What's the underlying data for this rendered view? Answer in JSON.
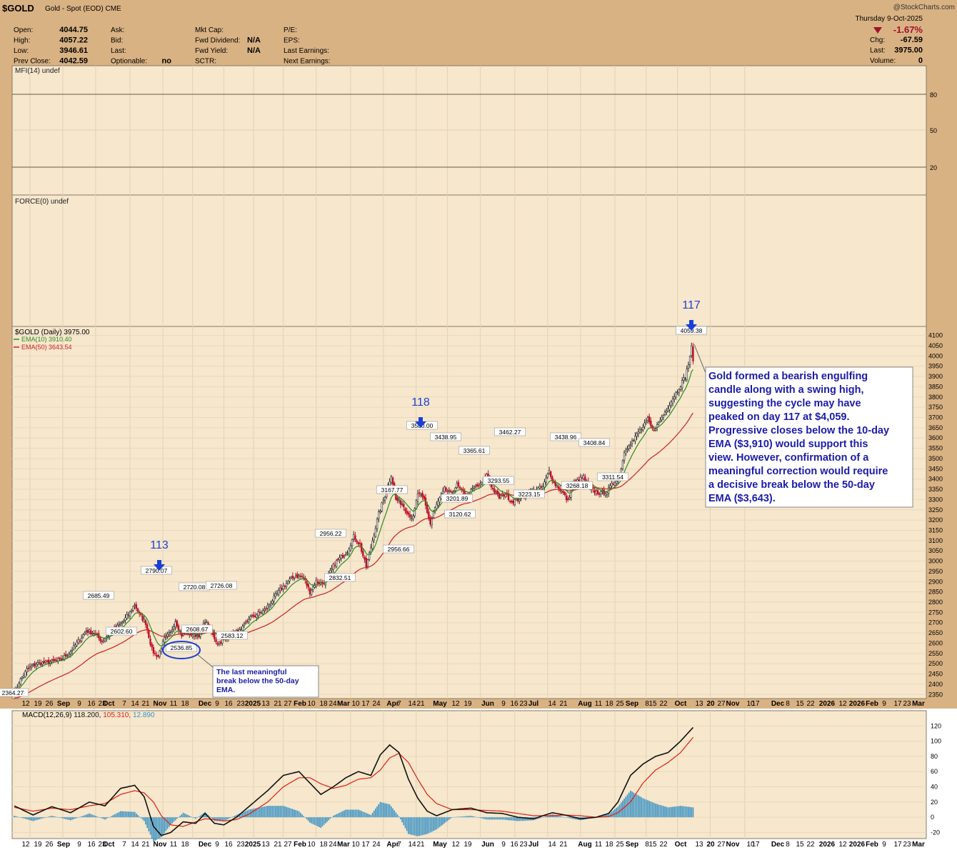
{
  "header": {
    "ticker": "$GOLD",
    "name": "Gold - Spot (EOD)",
    "exchange": "CME",
    "brand": "@StockCharts.com",
    "date": "Thursday  9-Oct-2025",
    "change_pct": "-1.67%",
    "quote_left": [
      {
        "label": "Open:",
        "value": "4044.75"
      },
      {
        "label": "High:",
        "value": "4057.22"
      },
      {
        "label": "Low:",
        "value": "3946.61"
      },
      {
        "label": "Prev Close:",
        "value": "4042.59"
      }
    ],
    "quote_mid1": [
      {
        "label": "Ask:",
        "value": ""
      },
      {
        "label": "Bid:",
        "value": ""
      },
      {
        "label": "Last:",
        "value": ""
      },
      {
        "label": "Optionable:",
        "value": "no"
      }
    ],
    "quote_mid2": [
      {
        "label": "Mkt Cap:",
        "value": ""
      },
      {
        "label": "Fwd Dividend:",
        "value": "N/A"
      },
      {
        "label": "Fwd Yield:",
        "value": "N/A"
      },
      {
        "label": "SCTR:",
        "value": ""
      }
    ],
    "quote_mid3": [
      {
        "label": "P/E:",
        "value": ""
      },
      {
        "label": "EPS:",
        "value": ""
      },
      {
        "label": "Last Earnings:",
        "value": ""
      },
      {
        "label": "Next Earnings:",
        "value": ""
      }
    ],
    "quote_right": [
      {
        "label": "Chg:",
        "value": "-67.59"
      },
      {
        "label": "Last:",
        "value": "3975.00"
      },
      {
        "label": "Volume:",
        "value": "0"
      }
    ]
  },
  "panels": {
    "mfi_label": "MFI(14) undef",
    "force_label": "FORCE(0) undef",
    "price_label": "$GOLD (Daily) 3975.00",
    "ema10_label": "EMA(10) 3910.40",
    "ema50_label": "EMA(50) 3643.54",
    "macd_label": "MACD(12,26,9)",
    "macd_vals": [
      "118.200",
      "105.310",
      "12.890"
    ]
  },
  "colors": {
    "header_bg": "#d9b283",
    "panel_bg": "#f6e7cd",
    "candle_up": "#2a2a2a",
    "candle_down": "#c0102a",
    "ema10": "#2e8b1f",
    "ema50": "#d02020",
    "macd_line": "#111111",
    "signal_line": "#e02010",
    "histogram": "#3b93c4",
    "annotation_text": "#1c1ca8",
    "arrow": "#1b3fd6"
  },
  "x_axis_labels": [
    "12",
    "19",
    "26",
    "Sep",
    "9",
    "16",
    "23",
    "Oct",
    "7",
    "14",
    "21",
    "Nov",
    "11",
    "18",
    "Dec",
    "9",
    "16",
    "23",
    "2025",
    "13",
    "21",
    "27",
    "Feb",
    "10",
    "18",
    "24",
    "Mar",
    "10",
    "17",
    "24",
    "Apr",
    "7",
    "14",
    "21",
    "May",
    "12",
    "19",
    "Jun",
    "9",
    "16",
    "23",
    "Jul",
    "14",
    "21",
    "Aug",
    "11",
    "18",
    "25",
    "Sep",
    "8",
    "15",
    "22",
    "Oct",
    "13",
    "20",
    "27",
    "Nov",
    "10",
    "17",
    "Dec",
    "8",
    "15",
    "22",
    "2026",
    "12",
    "2026",
    "Feb",
    "9",
    "17",
    "23",
    "Mar"
  ],
  "cycle_labels": [
    {
      "text": "113"
    },
    {
      "text": "118"
    },
    {
      "text": "117"
    }
  ],
  "annotations": {
    "main": "Gold formed a bearish engulfing candle along with a swing high, suggesting the cycle may have peaked on day 117 at $4,059. Progressive closes below the 10-day EMA ($3,910) would support this view. However, confirmation of a meaningful correction would require a decisive break below the 50-day EMA ($3,643).",
    "main_lines": [
      "Gold formed a bearish engulfing",
      "candle along with a swing high,",
      "suggesting the cycle may have",
      "peaked on day 117 at $4,059.",
      "Progressive closes below the 10-day",
      "EMA ($3,910) would support this",
      "view. However, confirmation of a",
      "meaningful correction would require",
      "a decisive break below the 50-day",
      "EMA ($3,643)."
    ],
    "small_lines": [
      "The last meaningful",
      "break below the 50-day",
      "EMA."
    ]
  },
  "chart_data": {
    "type": "candlestick",
    "title": "$GOLD (Daily) 3975.00",
    "price_ylim": [
      2330,
      4130
    ],
    "price_ticks": [
      2350,
      2400,
      2450,
      2500,
      2550,
      2600,
      2650,
      2700,
      2750,
      2800,
      2850,
      2900,
      2950,
      3000,
      3050,
      3100,
      3150,
      3200,
      3250,
      3300,
      3350,
      3400,
      3450,
      3500,
      3550,
      3600,
      3650,
      3700,
      3750,
      3800,
      3850,
      3900,
      3950,
      4000,
      4050,
      4100
    ],
    "close_anchors": [
      [
        0,
        2380
      ],
      [
        1,
        2364
      ],
      [
        3,
        2410
      ],
      [
        8,
        2470
      ],
      [
        14,
        2500
      ],
      [
        20,
        2505
      ],
      [
        25,
        2510
      ],
      [
        30,
        2520
      ],
      [
        36,
        2560
      ],
      [
        41,
        2610
      ],
      [
        46,
        2660
      ],
      [
        51,
        2650
      ],
      [
        56,
        2610
      ],
      [
        60,
        2640
      ],
      [
        66,
        2680
      ],
      [
        70,
        2710
      ],
      [
        74,
        2750
      ],
      [
        77,
        2790
      ],
      [
        80,
        2740
      ],
      [
        84,
        2700
      ],
      [
        88,
        2570
      ],
      [
        90,
        2545
      ],
      [
        92,
        2540
      ],
      [
        96,
        2620
      ],
      [
        100,
        2650
      ],
      [
        103,
        2710
      ],
      [
        107,
        2640
      ],
      [
        111,
        2650
      ],
      [
        115,
        2640
      ],
      [
        119,
        2640
      ],
      [
        122,
        2710
      ],
      [
        126,
        2650
      ],
      [
        130,
        2600
      ],
      [
        135,
        2620
      ],
      [
        140,
        2650
      ],
      [
        145,
        2660
      ],
      [
        150,
        2720
      ],
      [
        155,
        2740
      ],
      [
        160,
        2760
      ],
      [
        165,
        2810
      ],
      [
        170,
        2860
      ],
      [
        175,
        2900
      ],
      [
        180,
        2930
      ],
      [
        185,
        2920
      ],
      [
        189,
        2850
      ],
      [
        193,
        2900
      ],
      [
        197,
        2890
      ],
      [
        201,
        2930
      ],
      [
        205,
        2990
      ],
      [
        209,
        3020
      ],
      [
        213,
        3050
      ],
      [
        217,
        3120
      ],
      [
        221,
        3080
      ],
      [
        225,
        2970
      ],
      [
        229,
        3100
      ],
      [
        233,
        3230
      ],
      [
        237,
        3320
      ],
      [
        241,
        3420
      ],
      [
        244,
        3300
      ],
      [
        248,
        3280
      ],
      [
        252,
        3230
      ],
      [
        255,
        3210
      ],
      [
        258,
        3330
      ],
      [
        262,
        3300
      ],
      [
        266,
        3180
      ],
      [
        268,
        3240
      ],
      [
        271,
        3290
      ],
      [
        275,
        3350
      ],
      [
        279,
        3330
      ],
      [
        283,
        3370
      ],
      [
        286,
        3340
      ],
      [
        290,
        3320
      ],
      [
        294,
        3360
      ],
      [
        298,
        3370
      ],
      [
        302,
        3420
      ],
      [
        306,
        3350
      ],
      [
        310,
        3310
      ],
      [
        314,
        3330
      ],
      [
        318,
        3290
      ],
      [
        322,
        3300
      ],
      [
        325,
        3320
      ],
      [
        330,
        3340
      ],
      [
        334,
        3350
      ],
      [
        338,
        3360
      ],
      [
        342,
        3440
      ],
      [
        345,
        3380
      ],
      [
        348,
        3360
      ],
      [
        351,
        3330
      ],
      [
        354,
        3290
      ],
      [
        357,
        3380
      ],
      [
        360,
        3390
      ],
      [
        364,
        3410
      ],
      [
        368,
        3350
      ],
      [
        371,
        3340
      ],
      [
        375,
        3330
      ],
      [
        379,
        3340
      ],
      [
        383,
        3380
      ],
      [
        387,
        3420
      ],
      [
        390,
        3530
      ],
      [
        393,
        3570
      ],
      [
        396,
        3590
      ],
      [
        399,
        3630
      ],
      [
        402,
        3650
      ],
      [
        405,
        3690
      ],
      [
        408,
        3640
      ],
      [
        411,
        3660
      ],
      [
        414,
        3700
      ],
      [
        417,
        3740
      ],
      [
        420,
        3780
      ],
      [
        423,
        3820
      ],
      [
        426,
        3860
      ],
      [
        429,
        3900
      ],
      [
        431,
        3960
      ],
      [
        433,
        4040
      ],
      [
        434,
        3975
      ]
    ],
    "macd": {
      "name": "MACD(12,26,9)",
      "ylim": [
        -28,
        140
      ],
      "ticks": [
        -20,
        0,
        20,
        40,
        60,
        80,
        100,
        120
      ],
      "macd_anchors": [
        [
          0,
          15
        ],
        [
          12,
          3
        ],
        [
          24,
          14
        ],
        [
          36,
          6
        ],
        [
          48,
          20
        ],
        [
          58,
          15
        ],
        [
          68,
          38
        ],
        [
          77,
          42
        ],
        [
          83,
          27
        ],
        [
          89,
          -12
        ],
        [
          94,
          -24
        ],
        [
          100,
          -20
        ],
        [
          108,
          -6
        ],
        [
          116,
          -8
        ],
        [
          122,
          5
        ],
        [
          128,
          -8
        ],
        [
          134,
          -10
        ],
        [
          142,
          0
        ],
        [
          150,
          14
        ],
        [
          162,
          35
        ],
        [
          172,
          55
        ],
        [
          182,
          60
        ],
        [
          189,
          45
        ],
        [
          196,
          30
        ],
        [
          204,
          40
        ],
        [
          212,
          52
        ],
        [
          220,
          60
        ],
        [
          228,
          55
        ],
        [
          234,
          82
        ],
        [
          240,
          95
        ],
        [
          246,
          85
        ],
        [
          252,
          50
        ],
        [
          258,
          25
        ],
        [
          264,
          8
        ],
        [
          270,
          2
        ],
        [
          280,
          10
        ],
        [
          292,
          12
        ],
        [
          302,
          6
        ],
        [
          312,
          5
        ],
        [
          322,
          0
        ],
        [
          332,
          -2
        ],
        [
          344,
          6
        ],
        [
          352,
          3
        ],
        [
          362,
          -2
        ],
        [
          372,
          0
        ],
        [
          380,
          5
        ],
        [
          386,
          20
        ],
        [
          394,
          55
        ],
        [
          402,
          70
        ],
        [
          410,
          80
        ],
        [
          418,
          85
        ],
        [
          426,
          100
        ],
        [
          434,
          118
        ]
      ],
      "signal_anchors": [
        [
          0,
          13
        ],
        [
          12,
          8
        ],
        [
          24,
          12
        ],
        [
          36,
          10
        ],
        [
          48,
          15
        ],
        [
          58,
          18
        ],
        [
          68,
          30
        ],
        [
          77,
          35
        ],
        [
          83,
          32
        ],
        [
          89,
          20
        ],
        [
          94,
          2
        ],
        [
          100,
          -10
        ],
        [
          108,
          -12
        ],
        [
          116,
          -6
        ],
        [
          122,
          -2
        ],
        [
          128,
          -3
        ],
        [
          134,
          -5
        ],
        [
          142,
          -3
        ],
        [
          150,
          4
        ],
        [
          162,
          20
        ],
        [
          172,
          40
        ],
        [
          182,
          52
        ],
        [
          189,
          52
        ],
        [
          196,
          44
        ],
        [
          204,
          38
        ],
        [
          212,
          42
        ],
        [
          220,
          50
        ],
        [
          228,
          52
        ],
        [
          234,
          62
        ],
        [
          240,
          78
        ],
        [
          246,
          84
        ],
        [
          252,
          72
        ],
        [
          258,
          50
        ],
        [
          264,
          30
        ],
        [
          270,
          18
        ],
        [
          280,
          10
        ],
        [
          292,
          10
        ],
        [
          302,
          9
        ],
        [
          312,
          8
        ],
        [
          322,
          5
        ],
        [
          332,
          2
        ],
        [
          344,
          2
        ],
        [
          352,
          3
        ],
        [
          362,
          2
        ],
        [
          372,
          0
        ],
        [
          380,
          1
        ],
        [
          386,
          6
        ],
        [
          394,
          20
        ],
        [
          402,
          45
        ],
        [
          410,
          62
        ],
        [
          418,
          72
        ],
        [
          426,
          85
        ],
        [
          434,
          105
        ]
      ]
    },
    "mfi": {
      "name": "MFI(14) undef",
      "ticks": [
        80,
        50,
        20
      ]
    },
    "force": {
      "name": "FORCE(0) undef"
    },
    "price_callouts": [
      {
        "text": "2364.27",
        "value": 2364.27
      },
      {
        "text": "2685.49",
        "value": 2685.49
      },
      {
        "text": "2602.60",
        "value": 2602.6
      },
      {
        "text": "2790.07",
        "value": 2790.07
      },
      {
        "text": "2536.85",
        "value": 2536.85
      },
      {
        "text": "2608.67",
        "value": 2608.67
      },
      {
        "text": "2720.08",
        "value": 2720.08
      },
      {
        "text": "2726.08",
        "value": 2726.08
      },
      {
        "text": "2583.12",
        "value": 2583.12
      },
      {
        "text": "2956.22",
        "value": 2956.22
      },
      {
        "text": "2832.51",
        "value": 2832.51
      },
      {
        "text": "3167.77",
        "value": 3167.77
      },
      {
        "text": "2956.66",
        "value": 2956.66
      },
      {
        "text": "3500.00",
        "value": 3500.0
      },
      {
        "text": "3438.95",
        "value": 3438.95
      },
      {
        "text": "3201.89",
        "value": 3201.89
      },
      {
        "text": "3120.62",
        "value": 3120.62
      },
      {
        "text": "3365.61",
        "value": 3365.61
      },
      {
        "text": "3293.55",
        "value": 3293.55
      },
      {
        "text": "3462.27",
        "value": 3462.27
      },
      {
        "text": "3223.15",
        "value": 3223.15
      },
      {
        "text": "3438.96",
        "value": 3438.96
      },
      {
        "text": "3408.84",
        "value": 3408.84
      },
      {
        "text": "3268.18",
        "value": 3268.18
      },
      {
        "text": "3311.54",
        "value": 3311.54
      },
      {
        "text": "4059.38",
        "value": 4059.38
      }
    ]
  }
}
